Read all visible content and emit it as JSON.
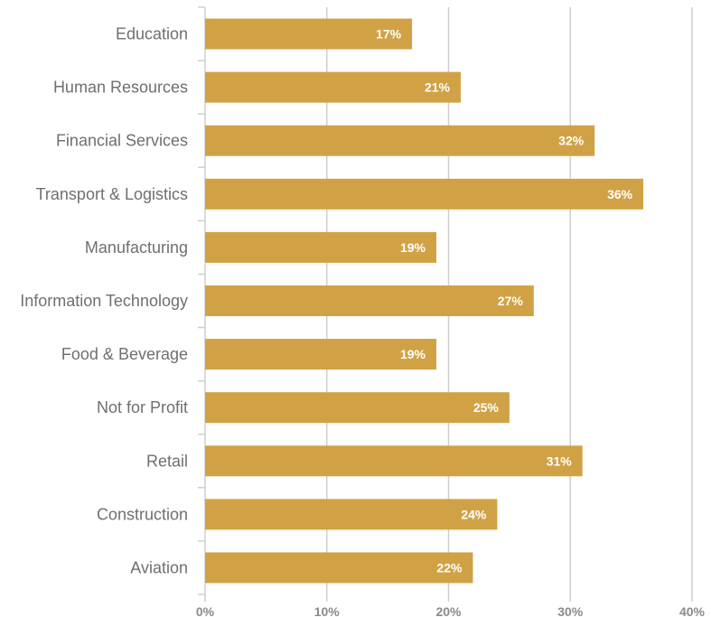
{
  "chart_data": {
    "type": "bar",
    "orientation": "horizontal",
    "categories": [
      "Education",
      "Human Resources",
      "Financial Services",
      "Transport & Logistics",
      "Manufacturing",
      "Information Technology",
      "Food & Beverage",
      "Not for Profit",
      "Retail",
      "Construction",
      "Aviation"
    ],
    "values": [
      17,
      21,
      32,
      36,
      19,
      27,
      19,
      25,
      31,
      24,
      22
    ],
    "value_labels": [
      "17%",
      "21%",
      "32%",
      "36%",
      "19%",
      "27%",
      "19%",
      "25%",
      "31%",
      "24%",
      "22%"
    ],
    "xlim": [
      0,
      40
    ],
    "xticks": [
      0,
      10,
      20,
      30,
      40
    ],
    "xtick_labels": [
      "0%",
      "10%",
      "20%",
      "30%",
      "40%"
    ],
    "title": "",
    "xlabel": "",
    "ylabel": "",
    "grid": true,
    "bar_color": "#D1A245"
  }
}
